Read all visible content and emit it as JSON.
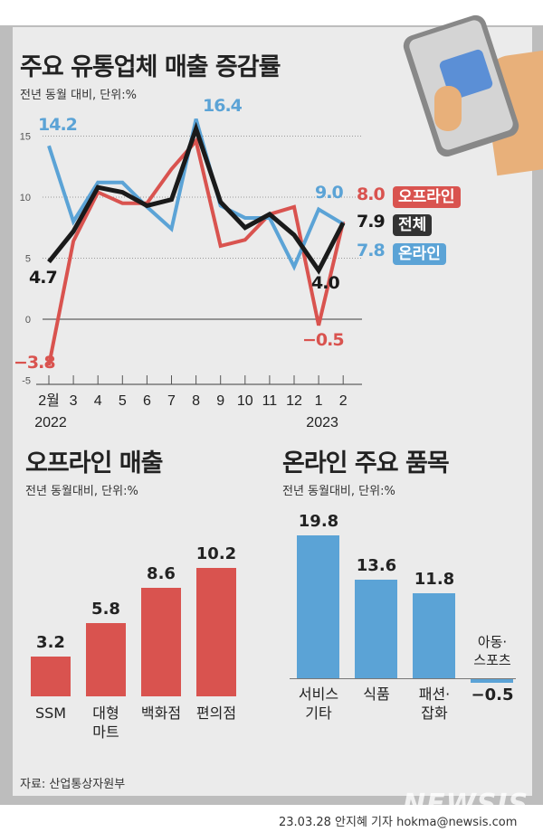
{
  "title": "주요 유통업체 매출 증감률",
  "unit": "전년 동월 대비, 단위:%",
  "colors": {
    "offline": "#d9534f",
    "online": "#5ba3d6",
    "total": "#1a1a1a"
  },
  "chart_data": [
    {
      "type": "line",
      "title": "주요 유통업체 매출 증감률",
      "ylabel": "전년 동월 대비, 단위:%",
      "ylim": [
        -5,
        17
      ],
      "yticks": [
        "15",
        "10",
        "5",
        "0",
        "-5"
      ],
      "ytick_values": [
        15,
        10,
        5,
        0,
        -5
      ],
      "categories": [
        "2월",
        "3",
        "4",
        "5",
        "6",
        "7",
        "8",
        "9",
        "10",
        "11",
        "12",
        "1",
        "2"
      ],
      "year_labels": [
        "2022",
        "2023"
      ],
      "series": [
        {
          "name": "오프라인",
          "values": [
            -3.8,
            6.4,
            10.4,
            9.5,
            9.5,
            12.3,
            14.6,
            6.0,
            6.5,
            8.6,
            9.2,
            -0.5,
            8.0
          ]
        },
        {
          "name": "온라인",
          "values": [
            14.2,
            8.0,
            11.2,
            11.2,
            9.2,
            7.4,
            16.4,
            9.3,
            8.3,
            8.3,
            4.3,
            9.0,
            7.8
          ]
        },
        {
          "name": "전체",
          "values": [
            4.7,
            7.2,
            10.8,
            10.4,
            9.3,
            9.8,
            15.6,
            9.6,
            7.5,
            8.6,
            6.9,
            4.0,
            7.9
          ]
        }
      ],
      "annotations": {
        "off_first": "−3.8",
        "on_first": "14.2",
        "tot_first": "4.7",
        "on_peak": "16.4",
        "on_jan": "9.0",
        "tot_jan": "4.0",
        "off_jan": "−0.5",
        "off_last": "8.0",
        "tot_last": "7.9",
        "on_last": "7.8"
      }
    },
    {
      "type": "bar",
      "title": "오프라인 매출",
      "subtitle": "전년 동월대비, 단위:%",
      "categories": [
        "SSM",
        "대형\n마트",
        "백화점",
        "편의점"
      ],
      "values": [
        3.2,
        5.8,
        8.6,
        10.2
      ],
      "labels": [
        "3.2",
        "5.8",
        "8.6",
        "10.2"
      ]
    },
    {
      "type": "bar",
      "title": "온라인 주요 품목",
      "subtitle": "전년 동월대비, 단위:%",
      "categories": [
        "서비스\n기타",
        "식품",
        "패션·\n잡화",
        "아동·\n스포츠"
      ],
      "values": [
        19.8,
        13.6,
        11.8,
        -0.5
      ],
      "labels": [
        "19.8",
        "13.6",
        "11.8",
        "−0.5"
      ]
    }
  ],
  "legend": {
    "offline": "오프라인",
    "total": "전체",
    "online": "온라인"
  },
  "source": "자료: 산업통상자원부",
  "credit": "23.03.28 안지혜 기자 hokma@newsis.com",
  "watermark": "NEWSIS"
}
